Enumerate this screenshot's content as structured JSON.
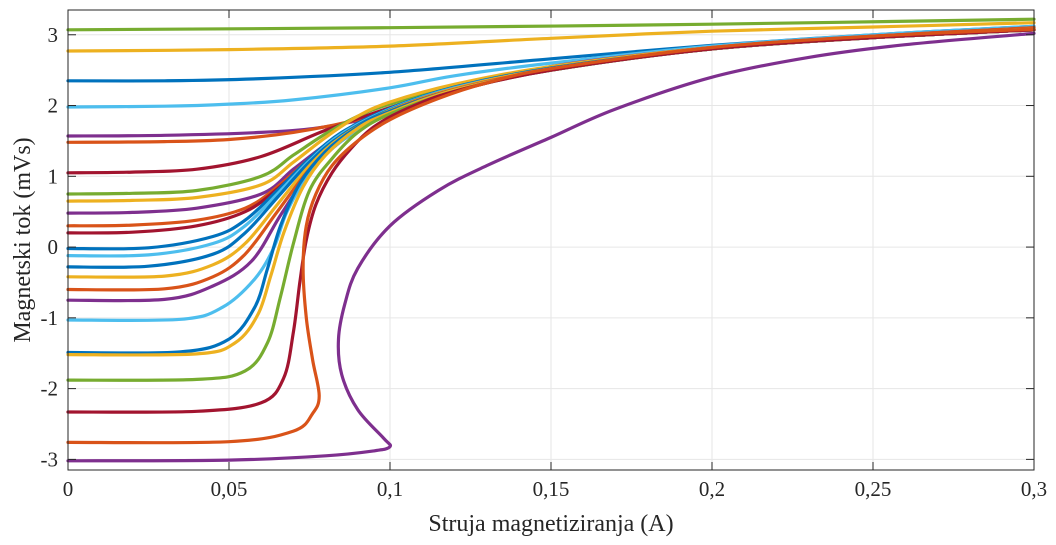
{
  "chart_data": {
    "type": "line",
    "title": "",
    "xlabel": "Struja magnetiziranja (A)",
    "ylabel": "Magnetski tok (mVs)",
    "xlim": [
      0,
      0.3
    ],
    "ylim": [
      -3.15,
      3.35
    ],
    "grid": true,
    "legend": "none",
    "x_ticks": [
      0,
      0.05,
      0.1,
      0.15,
      0.2,
      0.25,
      0.3
    ],
    "x_tick_labels": [
      "0",
      "0,05",
      "0,1",
      "0,15",
      "0,2",
      "0,25",
      "0,3"
    ],
    "y_ticks": [
      -3,
      -2,
      -1,
      0,
      1,
      2,
      3
    ],
    "y_tick_labels": [
      "-3",
      "-2",
      "-1",
      "0",
      "1",
      "2",
      "3"
    ],
    "series": [
      {
        "color": "#77AC30",
        "x": [
          0,
          0.1,
          0.2,
          0.3
        ],
        "y": [
          3.07,
          3.1,
          3.15,
          3.22
        ]
      },
      {
        "color": "#EDB120",
        "x": [
          0,
          0.05,
          0.1,
          0.15,
          0.2,
          0.25,
          0.3
        ],
        "y": [
          2.77,
          2.79,
          2.84,
          2.95,
          3.05,
          3.11,
          3.17
        ]
      },
      {
        "color": "#0072BD",
        "x": [
          0,
          0.03,
          0.06,
          0.1,
          0.15,
          0.2,
          0.25,
          0.3
        ],
        "y": [
          2.35,
          2.35,
          2.38,
          2.47,
          2.66,
          2.85,
          3.0,
          3.12
        ]
      },
      {
        "color": "#4DBEEE",
        "x": [
          0,
          0.03,
          0.05,
          0.07,
          0.1,
          0.12,
          0.15,
          0.2,
          0.25,
          0.3
        ],
        "y": [
          1.98,
          1.99,
          2.02,
          2.08,
          2.25,
          2.42,
          2.6,
          2.84,
          3.0,
          3.12
        ]
      },
      {
        "color": "#7E2F8E",
        "x": [
          0,
          0.03,
          0.06,
          0.08,
          0.1,
          0.12,
          0.15,
          0.2,
          0.25,
          0.3
        ],
        "y": [
          1.57,
          1.58,
          1.62,
          1.7,
          1.9,
          2.2,
          2.55,
          2.82,
          2.98,
          3.1
        ]
      },
      {
        "color": "#D95319",
        "x": [
          0,
          0.03,
          0.05,
          0.07,
          0.09,
          0.1,
          0.12,
          0.15,
          0.2,
          0.25,
          0.3
        ],
        "y": [
          1.48,
          1.49,
          1.52,
          1.62,
          1.8,
          1.95,
          2.2,
          2.52,
          2.82,
          2.98,
          3.1
        ]
      },
      {
        "color": "#A2142F",
        "x": [
          0,
          0.02,
          0.04,
          0.06,
          0.08,
          0.1,
          0.12,
          0.15,
          0.2,
          0.25,
          0.3
        ],
        "y": [
          1.05,
          1.06,
          1.1,
          1.28,
          1.65,
          1.97,
          2.25,
          2.52,
          2.8,
          2.96,
          3.08
        ]
      },
      {
        "color": "#77AC30",
        "x": [
          0,
          0.02,
          0.04,
          0.06,
          0.07,
          0.08,
          0.09,
          0.1,
          0.12,
          0.15,
          0.2,
          0.25,
          0.3
        ],
        "y": [
          0.75,
          0.76,
          0.8,
          1.0,
          1.3,
          1.6,
          1.85,
          2.02,
          2.27,
          2.53,
          2.81,
          2.97,
          3.08
        ]
      },
      {
        "color": "#EDB120",
        "x": [
          0,
          0.02,
          0.04,
          0.06,
          0.07,
          0.08,
          0.09,
          0.1,
          0.12,
          0.15,
          0.2,
          0.25,
          0.3
        ],
        "y": [
          0.65,
          0.66,
          0.7,
          0.88,
          1.2,
          1.55,
          1.85,
          2.05,
          2.3,
          2.55,
          2.82,
          2.97,
          3.08
        ]
      },
      {
        "color": "#7E2F8E",
        "x": [
          0,
          0.02,
          0.04,
          0.06,
          0.07,
          0.08,
          0.09,
          0.1,
          0.12,
          0.15,
          0.2,
          0.25,
          0.3
        ],
        "y": [
          0.48,
          0.49,
          0.55,
          0.75,
          1.1,
          1.45,
          1.75,
          1.95,
          2.25,
          2.52,
          2.8,
          2.96,
          3.07
        ]
      },
      {
        "color": "#D95319",
        "x": [
          0,
          0.02,
          0.04,
          0.055,
          0.065,
          0.075,
          0.085,
          0.1,
          0.12,
          0.15,
          0.2,
          0.25,
          0.3
        ],
        "y": [
          0.3,
          0.31,
          0.38,
          0.55,
          0.85,
          1.25,
          1.6,
          1.95,
          2.25,
          2.52,
          2.8,
          2.96,
          3.07
        ]
      },
      {
        "color": "#A2142F",
        "x": [
          0,
          0.02,
          0.04,
          0.055,
          0.065,
          0.075,
          0.085,
          0.1,
          0.12,
          0.15,
          0.2,
          0.25,
          0.3
        ],
        "y": [
          0.2,
          0.21,
          0.3,
          0.5,
          0.82,
          1.22,
          1.58,
          1.93,
          2.24,
          2.51,
          2.8,
          2.96,
          3.07
        ]
      },
      {
        "color": "#0072BD",
        "x": [
          0,
          0.025,
          0.045,
          0.055,
          0.065,
          0.075,
          0.085,
          0.1,
          0.12,
          0.15,
          0.2,
          0.25,
          0.3
        ],
        "y": [
          -0.02,
          -0.01,
          0.15,
          0.38,
          0.8,
          1.25,
          1.62,
          1.96,
          2.26,
          2.53,
          2.81,
          2.97,
          3.07
        ]
      },
      {
        "color": "#4DBEEE",
        "x": [
          0,
          0.025,
          0.045,
          0.055,
          0.065,
          0.075,
          0.085,
          0.1,
          0.12,
          0.15,
          0.2,
          0.25,
          0.3
        ],
        "y": [
          -0.12,
          -0.11,
          0.05,
          0.3,
          0.75,
          1.22,
          1.6,
          1.95,
          2.25,
          2.52,
          2.8,
          2.96,
          3.07
        ]
      },
      {
        "color": "#0072BD",
        "x": [
          0,
          0.025,
          0.045,
          0.055,
          0.065,
          0.075,
          0.085,
          0.1,
          0.12,
          0.15,
          0.2,
          0.25,
          0.3
        ],
        "y": [
          -0.28,
          -0.27,
          -0.1,
          0.2,
          0.7,
          1.2,
          1.58,
          1.94,
          2.24,
          2.52,
          2.8,
          2.96,
          3.07
        ]
      },
      {
        "color": "#EDB120",
        "x": [
          0,
          0.03,
          0.045,
          0.055,
          0.065,
          0.075,
          0.085,
          0.1,
          0.12,
          0.15,
          0.2,
          0.25,
          0.3
        ],
        "y": [
          -0.42,
          -0.41,
          -0.25,
          0.05,
          0.6,
          1.15,
          1.56,
          1.93,
          2.24,
          2.52,
          2.8,
          2.96,
          3.07
        ]
      },
      {
        "color": "#D95319",
        "x": [
          0,
          0.03,
          0.045,
          0.055,
          0.065,
          0.075,
          0.085,
          0.1,
          0.12,
          0.15,
          0.2,
          0.25,
          0.3
        ],
        "y": [
          -0.6,
          -0.59,
          -0.42,
          -0.1,
          0.5,
          1.1,
          1.53,
          1.92,
          2.23,
          2.51,
          2.8,
          2.96,
          3.07
        ]
      },
      {
        "color": "#7E2F8E",
        "x": [
          0,
          0.03,
          0.045,
          0.057,
          0.066,
          0.075,
          0.085,
          0.1,
          0.12,
          0.15,
          0.2,
          0.25,
          0.3
        ],
        "y": [
          -0.75,
          -0.74,
          -0.55,
          -0.2,
          0.45,
          1.05,
          1.5,
          1.9,
          2.22,
          2.5,
          2.8,
          2.96,
          3.07
        ]
      },
      {
        "color": "#4DBEEE",
        "x": [
          0,
          0.035,
          0.048,
          0.058,
          0.064,
          0.068,
          0.075,
          0.085,
          0.1,
          0.12,
          0.15,
          0.2,
          0.25,
          0.3
        ],
        "y": [
          -1.03,
          -1.02,
          -0.85,
          -0.45,
          0.0,
          0.5,
          1.05,
          1.5,
          1.9,
          2.22,
          2.5,
          2.8,
          2.96,
          3.07
        ]
      },
      {
        "color": "#0072BD",
        "x": [
          0,
          0.035,
          0.05,
          0.058,
          0.062,
          0.066,
          0.072,
          0.08,
          0.09,
          0.1,
          0.12,
          0.15,
          0.2,
          0.25,
          0.3
        ],
        "y": [
          -1.49,
          -1.48,
          -1.3,
          -0.85,
          -0.3,
          0.3,
          0.9,
          1.35,
          1.7,
          1.92,
          2.22,
          2.5,
          2.8,
          2.96,
          3.07
        ]
      },
      {
        "color": "#EDB120",
        "x": [
          0,
          0.04,
          0.052,
          0.059,
          0.063,
          0.067,
          0.073,
          0.08,
          0.09,
          0.1,
          0.12,
          0.15,
          0.2,
          0.25,
          0.3
        ],
        "y": [
          -1.52,
          -1.51,
          -1.35,
          -0.95,
          -0.4,
          0.2,
          0.85,
          1.3,
          1.68,
          1.9,
          2.22,
          2.5,
          2.8,
          2.96,
          3.07
        ]
      },
      {
        "color": "#77AC30",
        "x": [
          0,
          0.04,
          0.055,
          0.062,
          0.066,
          0.07,
          0.075,
          0.082,
          0.09,
          0.1,
          0.12,
          0.15,
          0.2,
          0.25,
          0.3
        ],
        "y": [
          -1.88,
          -1.87,
          -1.75,
          -1.35,
          -0.7,
          0.05,
          0.8,
          1.25,
          1.62,
          1.88,
          2.2,
          2.5,
          2.8,
          2.96,
          3.07
        ]
      },
      {
        "color": "#A2142F",
        "x": [
          0,
          0.04,
          0.06,
          0.067,
          0.07,
          0.072,
          0.074,
          0.077,
          0.082,
          0.088,
          0.095,
          0.105,
          0.12,
          0.15,
          0.2,
          0.25,
          0.3
        ],
        "y": [
          -2.33,
          -2.32,
          -2.2,
          -1.85,
          -1.2,
          -0.5,
          0.1,
          0.6,
          1.05,
          1.4,
          1.7,
          1.95,
          2.2,
          2.5,
          2.8,
          2.96,
          3.07
        ]
      },
      {
        "color": "#D95319",
        "x": [
          0,
          0.05,
          0.07,
          0.076,
          0.078,
          0.076,
          0.074,
          0.073,
          0.074,
          0.077,
          0.082,
          0.09,
          0.1,
          0.115,
          0.13,
          0.15,
          0.2,
          0.25,
          0.3
        ],
        "y": [
          -2.76,
          -2.75,
          -2.6,
          -2.35,
          -2.1,
          -1.6,
          -1.0,
          -0.3,
          0.3,
          0.75,
          1.15,
          1.5,
          1.8,
          2.1,
          2.32,
          2.52,
          2.82,
          2.98,
          3.08
        ]
      },
      {
        "color": "#7E2F8E",
        "x": [
          0,
          0.05,
          0.08,
          0.095,
          0.1,
          0.098,
          0.09,
          0.085,
          0.084,
          0.086,
          0.09,
          0.1,
          0.115,
          0.13,
          0.15,
          0.17,
          0.2,
          0.23,
          0.26,
          0.3
        ],
        "y": [
          -3.02,
          -3.01,
          -2.95,
          -2.88,
          -2.82,
          -2.7,
          -2.3,
          -1.8,
          -1.3,
          -0.8,
          -0.3,
          0.3,
          0.8,
          1.15,
          1.55,
          1.95,
          2.4,
          2.68,
          2.86,
          3.02
        ]
      }
    ]
  }
}
